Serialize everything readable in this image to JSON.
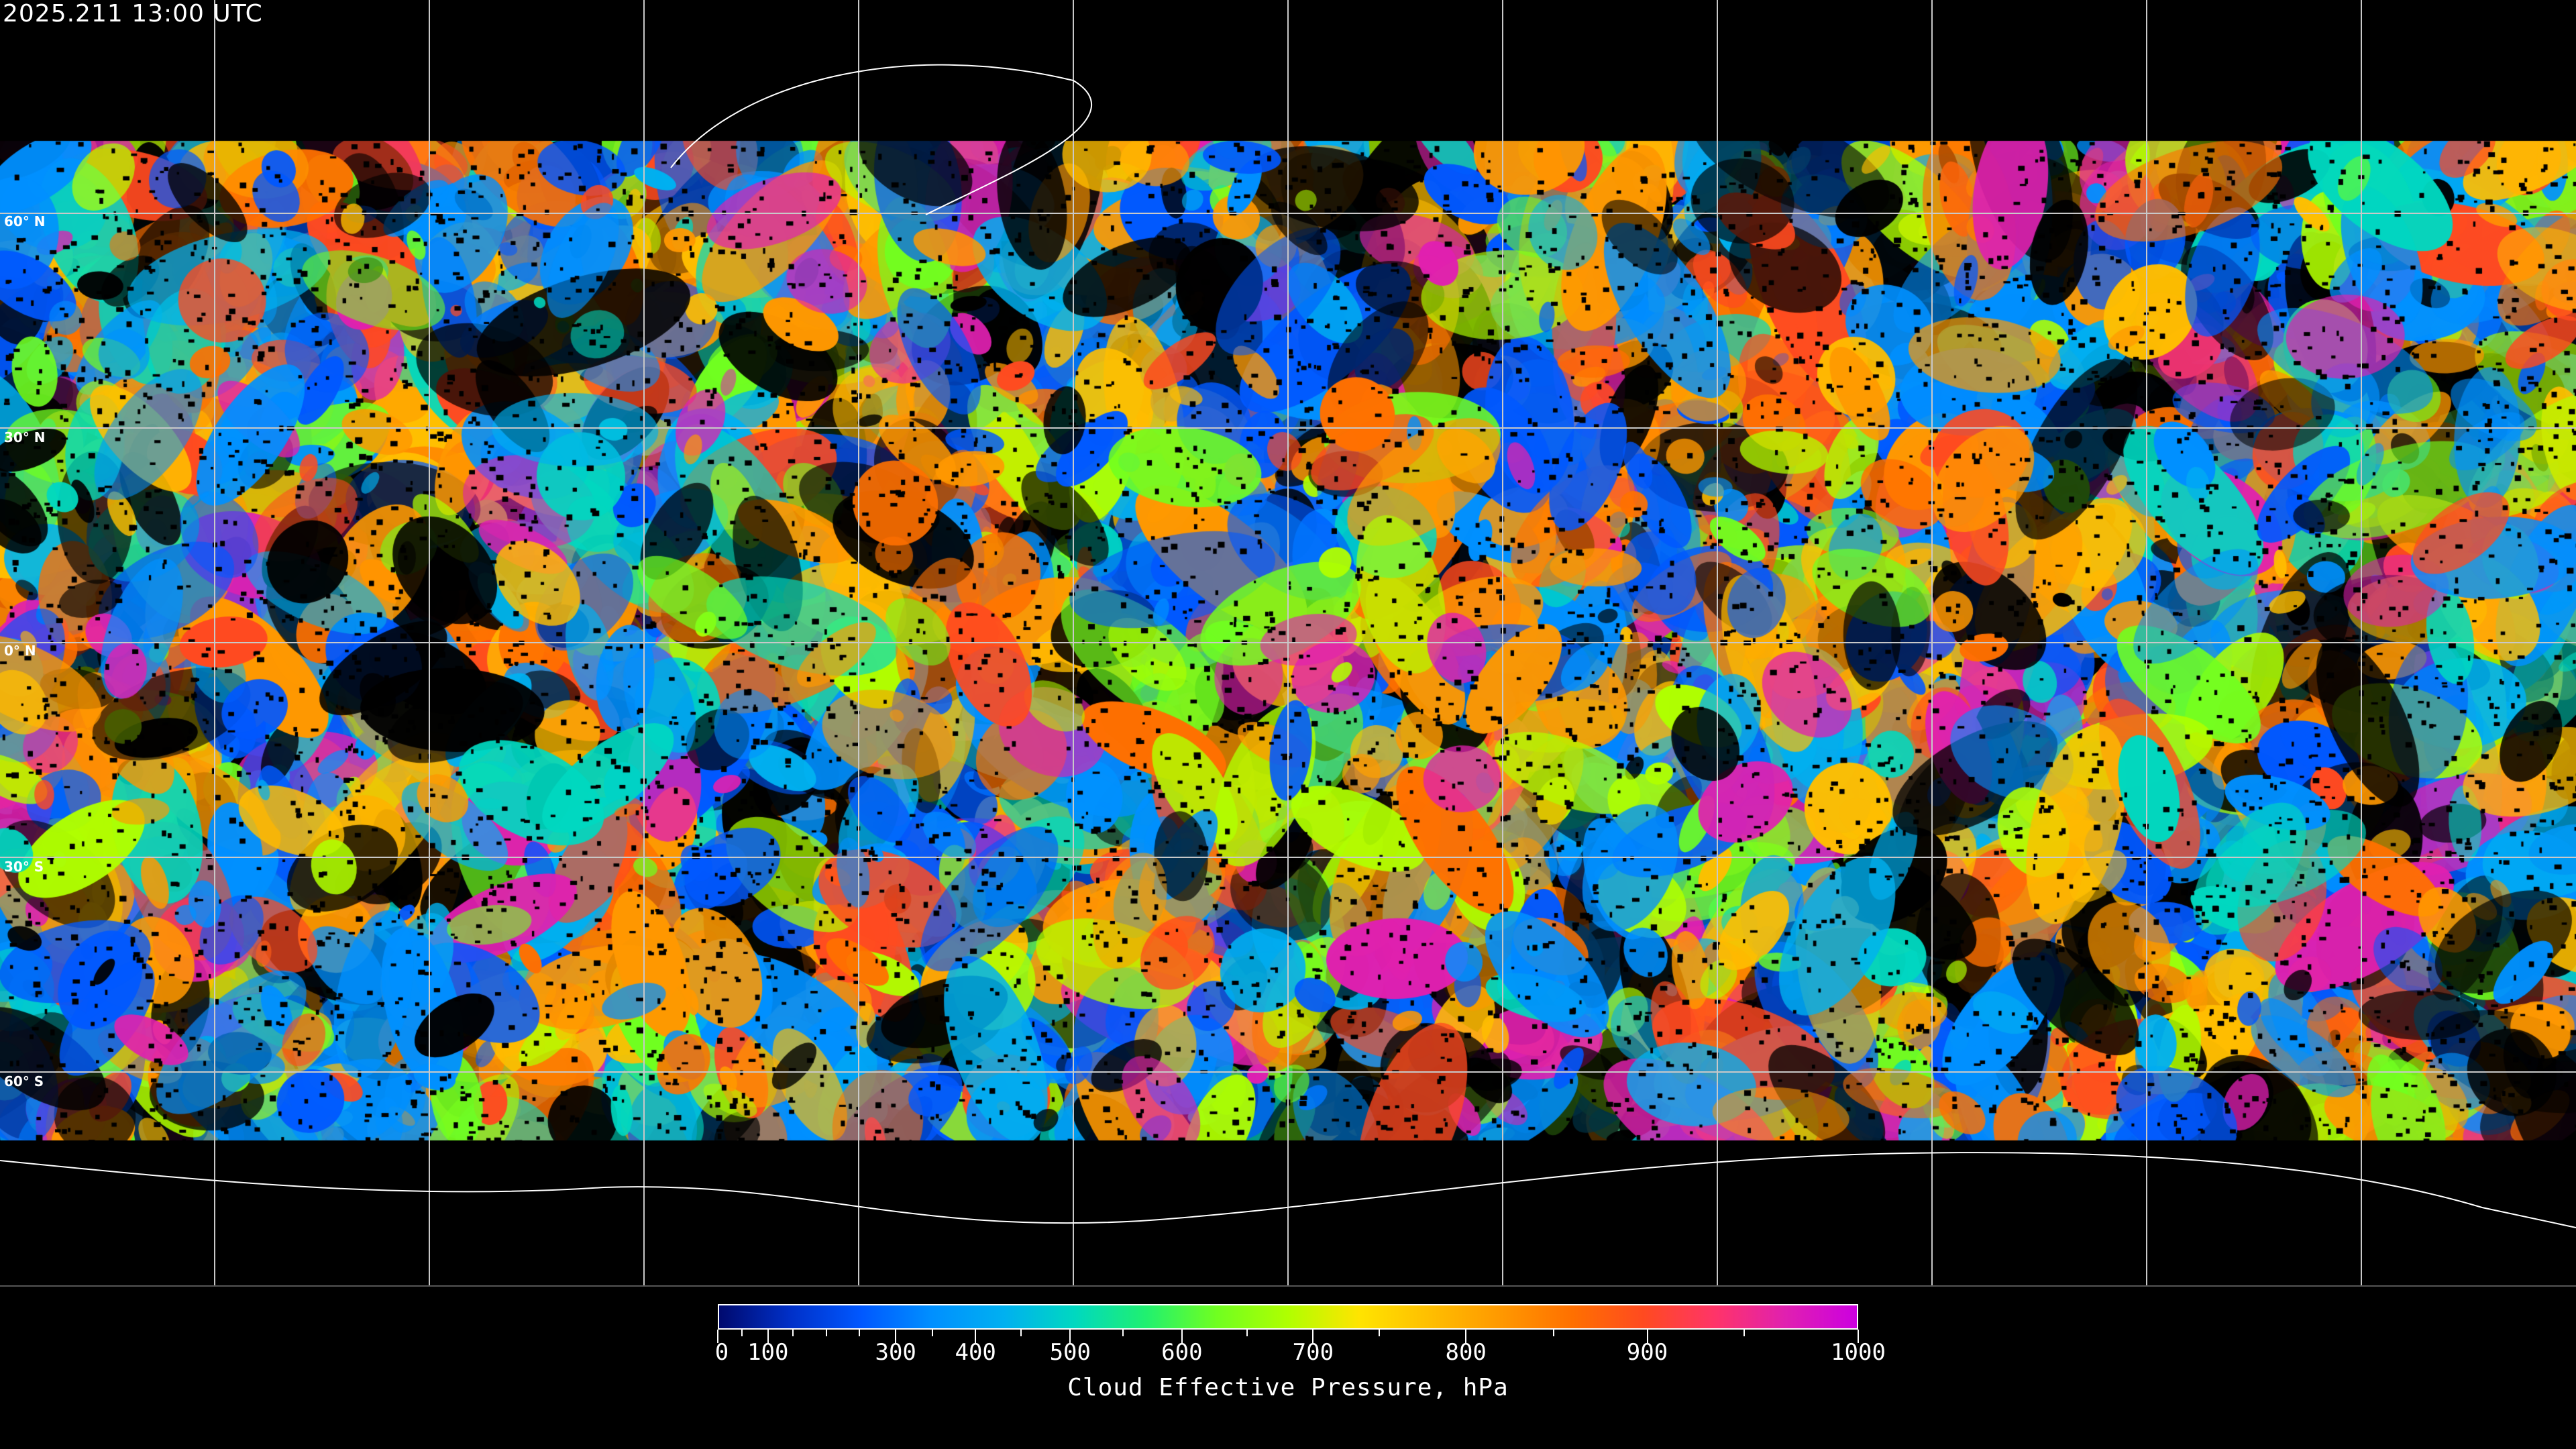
{
  "title": "2025.211 13:00 UTC",
  "map": {
    "projection": "equirectangular",
    "latitude_labels": [
      "60° N",
      "30° N",
      "0° N",
      "30° S",
      "60° S"
    ],
    "gridlines": true,
    "gridline_color": "#c8c8c8",
    "coastline_color": "#ffffff",
    "no_data_color": "#000000"
  },
  "colorbar": {
    "title": "Cloud Effective Pressure, hPa",
    "min": 0,
    "max": 1000,
    "tick_labels": [
      "0",
      "100",
      "300",
      "400",
      "500",
      "600",
      "700",
      "800",
      "900",
      "1000"
    ],
    "colors": [
      "#000a6e",
      "#0030c8",
      "#0058ff",
      "#0090ff",
      "#00b0f0",
      "#00d8c0",
      "#20f070",
      "#70ff20",
      "#b0ff00",
      "#ffe400",
      "#ffbe00",
      "#ff9800",
      "#ff7000",
      "#ff4a20",
      "#ff3468",
      "#e020b0",
      "#cc00e0"
    ]
  }
}
